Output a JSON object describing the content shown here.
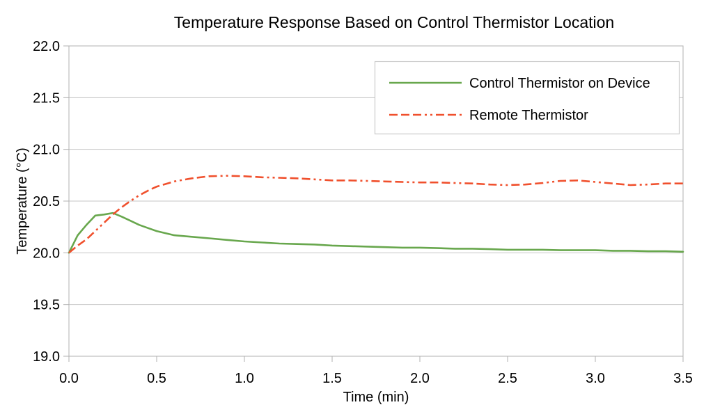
{
  "chart_data": {
    "type": "line",
    "title": "Temperature Response Based on Control Thermistor Location",
    "xlabel": "Time (min)",
    "ylabel": "Temperature (°C)",
    "xlim": [
      0,
      3.5
    ],
    "ylim": [
      19.0,
      22.0
    ],
    "xtick_step": 0.5,
    "ytick_step": 0.5,
    "xtick_labels": [
      "0.0",
      "0.5",
      "1.0",
      "1.5",
      "2.0",
      "2.5",
      "3.0",
      "3.5"
    ],
    "ytick_labels": [
      "19.0",
      "19.5",
      "20.0",
      "20.5",
      "21.0",
      "21.5",
      "22.0"
    ],
    "grid": "horizontal-only",
    "legend_position": "top-right-inside",
    "x": [
      0,
      0.05,
      0.1,
      0.15,
      0.2,
      0.25,
      0.3,
      0.35,
      0.4,
      0.45,
      0.5,
      0.6,
      0.7,
      0.8,
      0.9,
      1.0,
      1.1,
      1.2,
      1.3,
      1.4,
      1.5,
      1.6,
      1.7,
      1.8,
      1.9,
      2.0,
      2.1,
      2.2,
      2.3,
      2.4,
      2.5,
      2.6,
      2.7,
      2.8,
      2.9,
      3.0,
      3.1,
      3.2,
      3.3,
      3.4,
      3.5
    ],
    "series": [
      {
        "name": "Control Thermistor on Device",
        "color": "#68a74d",
        "line_style": "solid",
        "values": [
          20.0,
          20.17,
          20.27,
          20.36,
          20.37,
          20.385,
          20.35,
          20.31,
          20.27,
          20.24,
          20.21,
          20.17,
          20.155,
          20.14,
          20.125,
          20.11,
          20.1,
          20.09,
          20.085,
          20.08,
          20.07,
          20.065,
          20.06,
          20.055,
          20.05,
          20.05,
          20.045,
          20.04,
          20.04,
          20.035,
          20.03,
          20.03,
          20.03,
          20.025,
          20.025,
          20.025,
          20.02,
          20.02,
          20.015,
          20.015,
          20.01
        ]
      },
      {
        "name": "Remote Thermistor",
        "color": "#f0502d",
        "line_style": "dash-dot-dot",
        "values": [
          20.0,
          20.07,
          20.13,
          20.21,
          20.29,
          20.37,
          20.44,
          20.5,
          20.555,
          20.6,
          20.64,
          20.69,
          20.72,
          20.74,
          20.745,
          20.74,
          20.73,
          20.725,
          20.72,
          20.71,
          20.7,
          20.7,
          20.695,
          20.69,
          20.685,
          20.68,
          20.68,
          20.675,
          20.67,
          20.66,
          20.655,
          20.66,
          20.675,
          20.695,
          20.7,
          20.685,
          20.67,
          20.655,
          20.66,
          20.67,
          20.67
        ]
      }
    ],
    "colors": {
      "gridline": "#c4c4c4",
      "plot_border": "#b0b0b0",
      "tick_mark": "#b0b0b0",
      "legend_border": "#c9c9c9",
      "text": "#000000",
      "background": "#ffffff"
    }
  }
}
